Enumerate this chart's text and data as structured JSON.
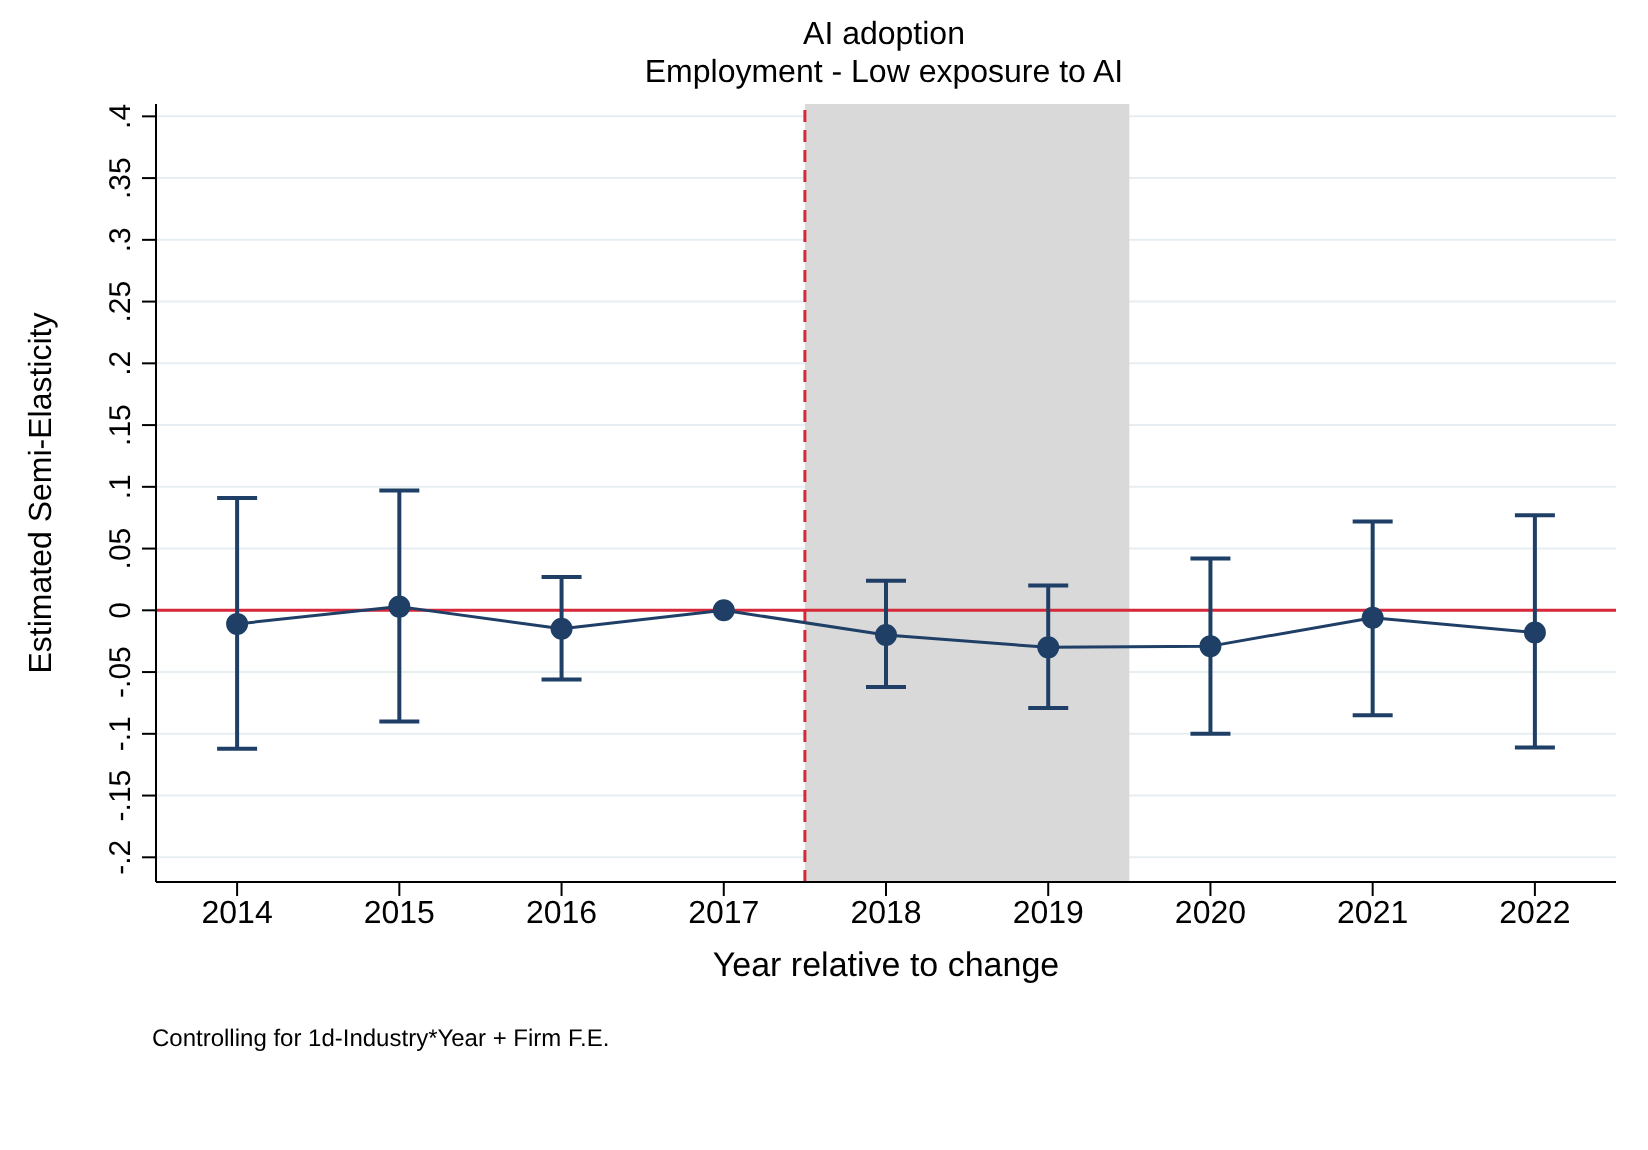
{
  "chart_data": {
    "type": "line",
    "title": "AI adoption",
    "subtitle": "Employment - Low exposure to AI",
    "xlabel": "Year relative to change",
    "ylabel": "Estimated Semi-Elasticity",
    "annotations": [
      "Controlling for 1d-Industry*Year + Firm F.E."
    ],
    "x": [
      2014,
      2015,
      2016,
      2017,
      2018,
      2019,
      2020,
      2021,
      2022
    ],
    "series": [
      {
        "color": "#1f3f66",
        "values": [
          -0.011,
          0.003,
          -0.015,
          0,
          -0.02,
          -0.03,
          -0.029,
          -0.006,
          -0.018
        ],
        "errors": [
          [
            -0.112,
            0.091
          ],
          [
            -0.09,
            0.097
          ],
          [
            -0.056,
            0.027
          ],
          null,
          [
            -0.062,
            0.024
          ],
          [
            -0.079,
            0.02
          ],
          [
            -0.1,
            0.042
          ],
          [
            -0.085,
            0.072
          ],
          [
            -0.111,
            0.077
          ]
        ]
      }
    ],
    "xlim": [
      2013.5,
      2022.5
    ],
    "xticks": [
      2014,
      2015,
      2016,
      2017,
      2018,
      2019,
      2020,
      2021,
      2022
    ],
    "ylim": [
      -0.22,
      0.41
    ],
    "yticks": [
      {
        "value": -0.2,
        "label": "-.2"
      },
      {
        "value": -0.15,
        "label": "-.15"
      },
      {
        "value": -0.1,
        "label": "-.1"
      },
      {
        "value": -0.05,
        "label": "-.05"
      },
      {
        "value": 0,
        "label": "0"
      },
      {
        "value": 0.05,
        "label": ".05"
      },
      {
        "value": 0.1,
        "label": ".1"
      },
      {
        "value": 0.15,
        "label": ".15"
      },
      {
        "value": 0.2,
        "label": ".2"
      },
      {
        "value": 0.25,
        "label": ".25"
      },
      {
        "value": 0.3,
        "label": ".3"
      },
      {
        "value": 0.35,
        "label": ".35"
      },
      {
        "value": 0.4,
        "label": ".4"
      }
    ],
    "grid": "y",
    "marker": "circle",
    "line_style": "solid",
    "ref_lines": [
      {
        "axis": "y",
        "value": 0,
        "color": "#d62839",
        "line_style": "solid"
      },
      {
        "axis": "x",
        "value": 2017.5,
        "color": "#d62839",
        "line_style": "dashed"
      }
    ],
    "bands": [
      {
        "axis": "x",
        "from": 2017.5,
        "to": 2019.5,
        "color": "#d9d9d9"
      }
    ]
  }
}
